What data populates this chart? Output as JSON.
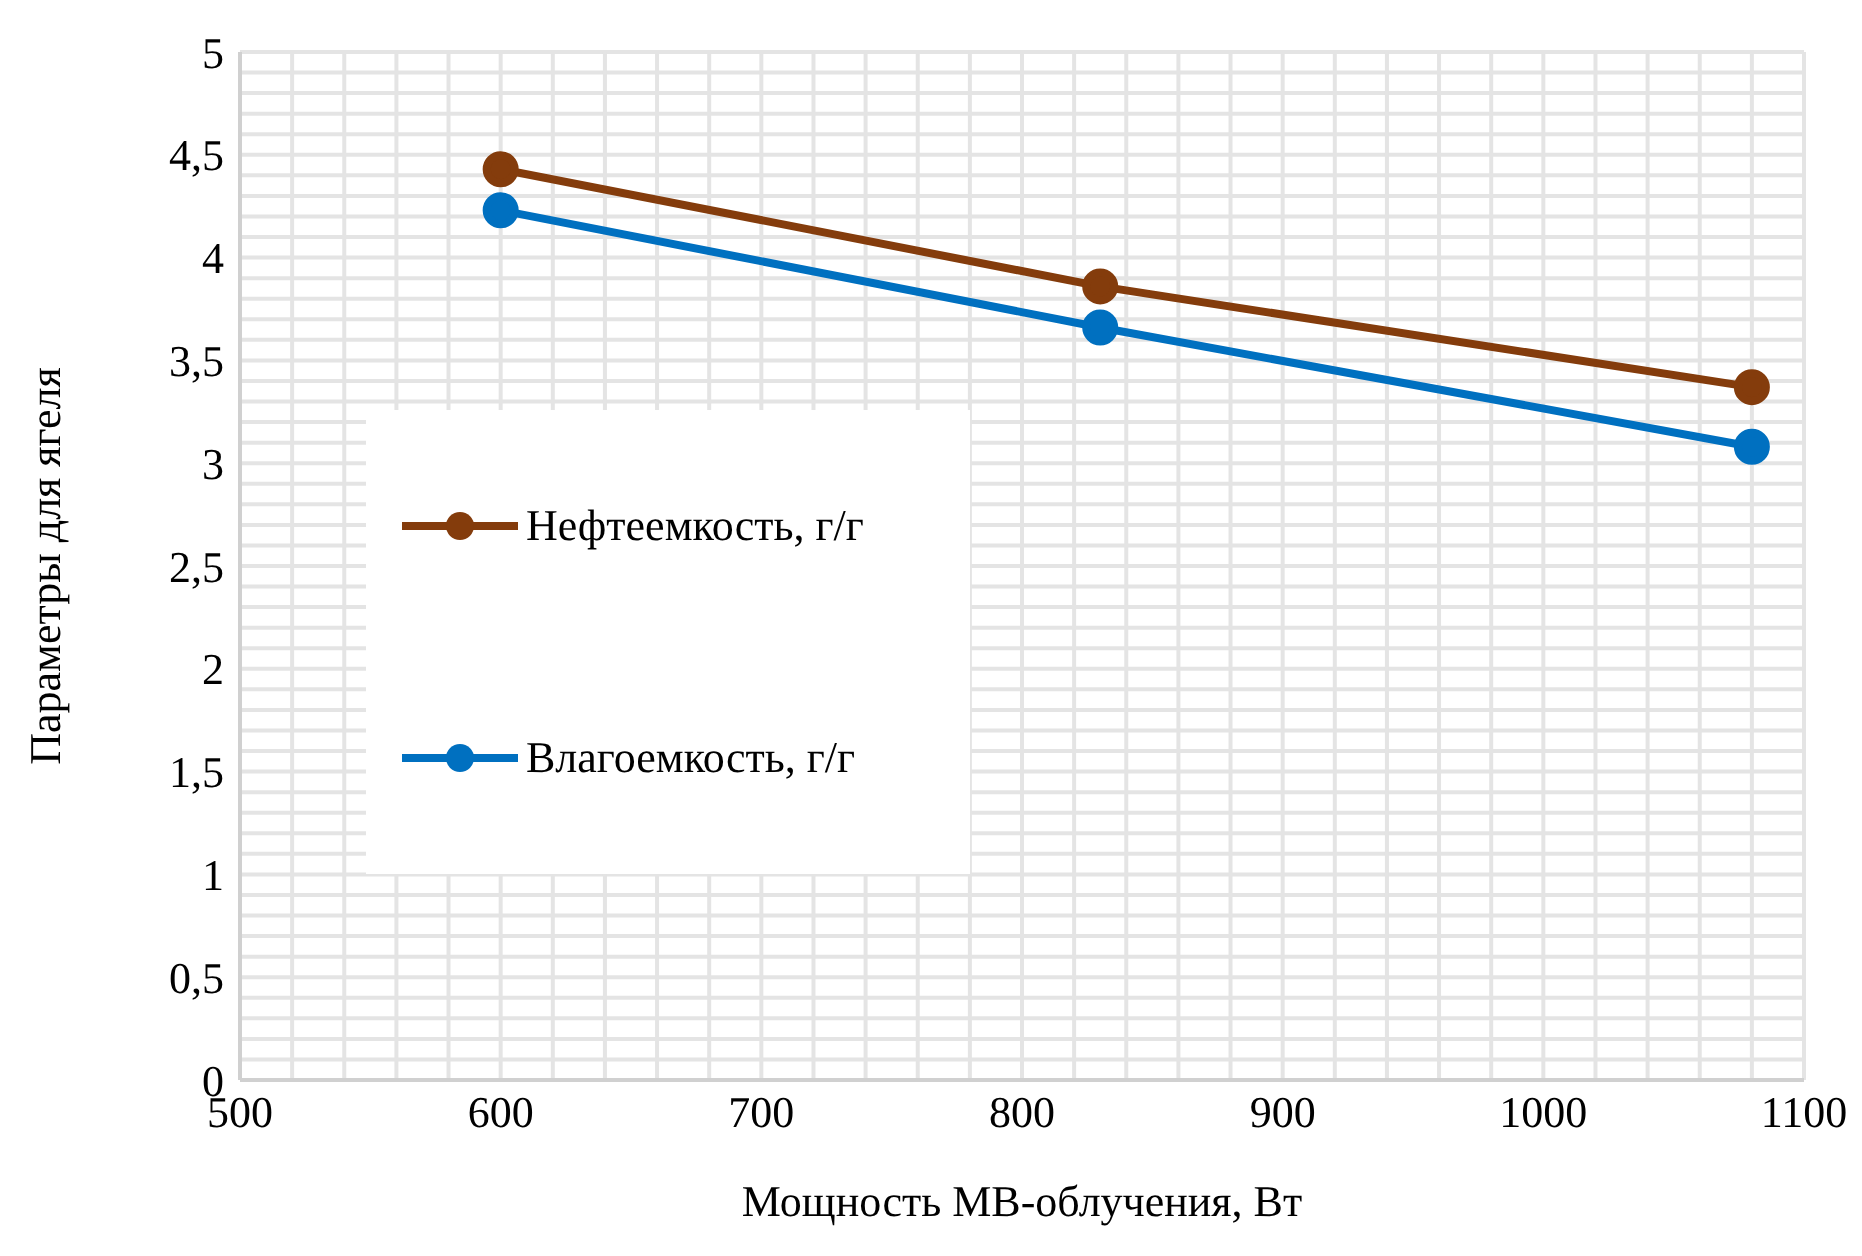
{
  "chart_data": {
    "type": "line",
    "xlabel": "Мощность МВ-облучения, Вт",
    "ylabel": "Параметры для ягеля",
    "x": [
      600,
      830,
      1080
    ],
    "series": [
      {
        "name": "Нефтеемкость, г/г",
        "color": "#843c0c",
        "values": [
          4.43,
          3.86,
          3.37
        ]
      },
      {
        "name": "Влагоемкость, г/г",
        "color": "#0070c0",
        "values": [
          4.23,
          3.66,
          3.08
        ]
      }
    ],
    "xlim": [
      500,
      1100
    ],
    "xticks": [
      500,
      {
        "value": 520,
        "label": null
      },
      {
        "value": 540,
        "label": null
      },
      {
        "value": 560,
        "label": null
      },
      {
        "value": 580,
        "label": null
      },
      600,
      {
        "value": 620,
        "label": null
      },
      {
        "value": 640,
        "label": null
      },
      {
        "value": 660,
        "label": null
      },
      {
        "value": 680,
        "label": null
      },
      700,
      {
        "value": 720,
        "label": null
      },
      {
        "value": 740,
        "label": null
      },
      {
        "value": 760,
        "label": null
      },
      {
        "value": 780,
        "label": null
      },
      800,
      {
        "value": 820,
        "label": null
      },
      {
        "value": 840,
        "label": null
      },
      {
        "value": 860,
        "label": null
      },
      {
        "value": 880,
        "label": null
      },
      900,
      {
        "value": 920,
        "label": null
      },
      {
        "value": 940,
        "label": null
      },
      {
        "value": 960,
        "label": null
      },
      {
        "value": 980,
        "label": null
      },
      1000,
      {
        "value": 1020,
        "label": null
      },
      {
        "value": 1040,
        "label": null
      },
      {
        "value": 1060,
        "label": null
      },
      {
        "value": 1080,
        "label": null
      },
      1100
    ],
    "ylim": [
      0,
      5
    ],
    "yticks": [
      0,
      {
        "value": 0.1,
        "label": null
      },
      {
        "value": 0.2,
        "label": null
      },
      {
        "value": 0.3,
        "label": null
      },
      {
        "value": 0.4,
        "label": null
      },
      {
        "value": 0.5,
        "label": "0,5"
      },
      {
        "value": 0.6,
        "label": null
      },
      {
        "value": 0.7,
        "label": null
      },
      {
        "value": 0.8,
        "label": null
      },
      {
        "value": 0.9,
        "label": null
      },
      1,
      {
        "value": 1.1,
        "label": null
      },
      {
        "value": 1.2,
        "label": null
      },
      {
        "value": 1.3,
        "label": null
      },
      {
        "value": 1.4,
        "label": null
      },
      {
        "value": 1.5,
        "label": "1,5"
      },
      {
        "value": 1.6,
        "label": null
      },
      {
        "value": 1.7,
        "label": null
      },
      {
        "value": 1.8,
        "label": null
      },
      {
        "value": 1.9,
        "label": null
      },
      2,
      {
        "value": 2.1,
        "label": null
      },
      {
        "value": 2.2,
        "label": null
      },
      {
        "value": 2.3,
        "label": null
      },
      {
        "value": 2.4,
        "label": null
      },
      {
        "value": 2.5,
        "label": "2,5"
      },
      {
        "value": 2.6,
        "label": null
      },
      {
        "value": 2.7,
        "label": null
      },
      {
        "value": 2.8,
        "label": null
      },
      {
        "value": 2.9,
        "label": null
      },
      3,
      {
        "value": 3.1,
        "label": null
      },
      {
        "value": 3.2,
        "label": null
      },
      {
        "value": 3.3,
        "label": null
      },
      {
        "value": 3.4,
        "label": null
      },
      {
        "value": 3.5,
        "label": "3,5"
      },
      {
        "value": 3.6,
        "label": null
      },
      {
        "value": 3.7,
        "label": null
      },
      {
        "value": 3.8,
        "label": null
      },
      {
        "value": 3.9,
        "label": null
      },
      4,
      {
        "value": 4.1,
        "label": null
      },
      {
        "value": 4.2,
        "label": null
      },
      {
        "value": 4.3,
        "label": null
      },
      {
        "value": 4.4,
        "label": null
      },
      {
        "value": 4.5,
        "label": "4,5"
      },
      {
        "value": 4.6,
        "label": null
      },
      {
        "value": 4.7,
        "label": null
      },
      {
        "value": 4.8,
        "label": null
      },
      {
        "value": 4.9,
        "label": null
      },
      5
    ],
    "grid": true,
    "legend": "left",
    "marker": "circle",
    "line_style": "solid"
  }
}
